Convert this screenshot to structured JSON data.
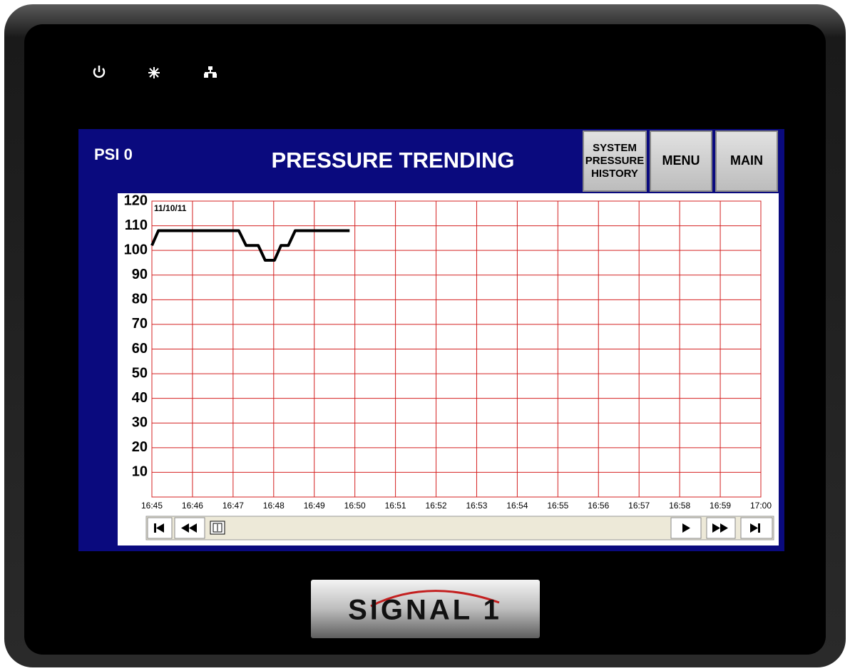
{
  "header": {
    "status": "PSI 0",
    "title": "PRESSURE TRENDING",
    "buttons": [
      {
        "lines": [
          "SYSTEM",
          "PRESSURE",
          "HISTORY"
        ]
      },
      {
        "lines": [
          "MENU"
        ]
      },
      {
        "lines": [
          "MAIN"
        ]
      }
    ]
  },
  "logo": "SIGNAL 1",
  "chart_data": {
    "type": "line",
    "annotation": "11/10/11",
    "color": "#000000",
    "grid": true,
    "grid_color": "#d42020",
    "x": [
      1005,
      1005.16,
      1007.14,
      1007.32,
      1007.62,
      1007.79,
      1008.02,
      1008.18,
      1008.36,
      1008.53,
      1009.87
    ],
    "values": [
      102,
      108,
      108,
      102,
      102,
      96,
      96,
      102,
      102,
      108,
      108
    ],
    "xlim": [
      1005,
      1020
    ],
    "xticks": [
      {
        "value": 1005,
        "label": "16:45"
      },
      {
        "value": 1006,
        "label": "16:46"
      },
      {
        "value": 1007,
        "label": "16:47"
      },
      {
        "value": 1008,
        "label": "16:48"
      },
      {
        "value": 1009,
        "label": "16:49"
      },
      {
        "value": 1010,
        "label": "16:50"
      },
      {
        "value": 1011,
        "label": "16:51"
      },
      {
        "value": 1012,
        "label": "16:52"
      },
      {
        "value": 1013,
        "label": "16:53"
      },
      {
        "value": 1014,
        "label": "16:54"
      },
      {
        "value": 1015,
        "label": "16:55"
      },
      {
        "value": 1016,
        "label": "16:56"
      },
      {
        "value": 1017,
        "label": "16:57"
      },
      {
        "value": 1018,
        "label": "16:58"
      },
      {
        "value": 1019,
        "label": "16:59"
      },
      {
        "value": 1020,
        "label": "17:00"
      }
    ],
    "ylim": [
      0,
      120
    ],
    "yticks": [
      10,
      20,
      30,
      40,
      50,
      60,
      70,
      80,
      90,
      100,
      110,
      120
    ]
  }
}
